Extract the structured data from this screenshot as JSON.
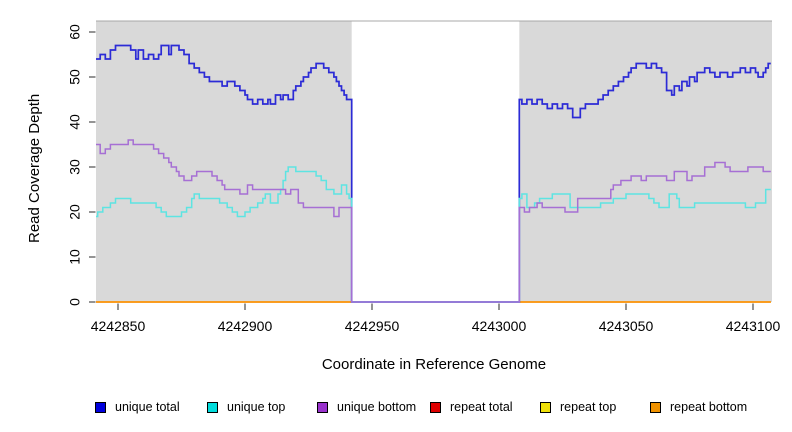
{
  "chart_data": {
    "type": "line",
    "subtype": "step-after",
    "title": "",
    "xlabel": "Coordinate in Reference Genome",
    "ylabel": "Read Coverage Depth",
    "xlim": [
      4242841,
      4243107
    ],
    "ylim": [
      0,
      62.4
    ],
    "x_ticks": [
      4242850,
      4242900,
      4242950,
      4243000,
      4243050,
      4243100
    ],
    "y_ticks": [
      0,
      10,
      20,
      30,
      40,
      50,
      60
    ],
    "grid": "off",
    "legend_position": "bottom",
    "panel_bg": "#d9d9d9",
    "gap_region": {
      "from": 4242942,
      "to": 4243008,
      "fill": "#ffffff"
    },
    "series": [
      {
        "name": "repeat total",
        "color": "#dd0000",
        "line_color": "#dd0000",
        "segments": [
          [
            [
              4242841,
              0
            ],
            [
              4242942,
              0
            ]
          ],
          [
            [
              4243008,
              0
            ],
            [
              4243107,
              0
            ]
          ]
        ]
      },
      {
        "name": "repeat top",
        "color": "#f0e10a",
        "line_color": "#f0e10a",
        "segments": [
          [
            [
              4242841,
              0
            ],
            [
              4242942,
              0
            ]
          ],
          [
            [
              4243008,
              0
            ],
            [
              4243107,
              0
            ]
          ]
        ]
      },
      {
        "name": "repeat bottom",
        "color": "#f09200",
        "line_color": "#ff9716",
        "segments": [
          [
            [
              4242841,
              0
            ],
            [
              4242942,
              0
            ]
          ],
          [
            [
              4243008,
              0
            ],
            [
              4243107,
              0
            ]
          ]
        ]
      },
      {
        "name": "unique total",
        "color": "#0000dd",
        "line_color": "#2c2bd6",
        "segments": [
          [
            [
              4242841,
              54
            ],
            [
              4242843,
              55
            ],
            [
              4242845,
              54
            ],
            [
              4242847,
              56
            ],
            [
              4242849,
              57
            ],
            [
              4242855,
              56
            ],
            [
              4242857,
              54
            ],
            [
              4242858,
              56
            ],
            [
              4242860,
              54
            ],
            [
              4242862,
              55
            ],
            [
              4242864,
              54
            ],
            [
              4242866,
              55
            ],
            [
              4242867,
              57
            ],
            [
              4242870,
              55
            ],
            [
              4242871,
              57
            ],
            [
              4242874,
              56
            ],
            [
              4242876,
              55
            ],
            [
              4242878,
              53
            ],
            [
              4242880,
              52
            ],
            [
              4242882,
              51
            ],
            [
              4242884,
              50
            ],
            [
              4242886,
              49
            ],
            [
              4242891,
              48
            ],
            [
              4242893,
              49
            ],
            [
              4242896,
              48
            ],
            [
              4242898,
              47
            ],
            [
              4242900,
              46
            ],
            [
              4242901,
              45
            ],
            [
              4242903,
              44
            ],
            [
              4242905,
              45
            ],
            [
              4242907,
              44
            ],
            [
              4242909,
              45
            ],
            [
              4242910,
              44
            ],
            [
              4242912,
              46
            ],
            [
              4242914,
              45
            ],
            [
              4242915,
              46
            ],
            [
              4242917,
              45
            ],
            [
              4242919,
              47
            ],
            [
              4242920,
              48
            ],
            [
              4242922,
              49
            ],
            [
              4242923,
              50
            ],
            [
              4242925,
              51
            ],
            [
              4242926,
              52
            ],
            [
              4242928,
              53
            ],
            [
              4242931,
              52
            ],
            [
              4242933,
              51
            ],
            [
              4242935,
              50
            ],
            [
              4242936,
              49
            ],
            [
              4242937,
              48
            ],
            [
              4242938,
              47
            ],
            [
              4242939,
              46
            ],
            [
              4242940,
              45
            ],
            [
              4242942,
              0
            ],
            [
              4243008,
              45
            ],
            [
              4243009,
              44
            ],
            [
              4243011,
              45
            ],
            [
              4243013,
              44
            ],
            [
              4243015,
              45
            ],
            [
              4243017,
              44
            ],
            [
              4243019,
              43
            ],
            [
              4243021,
              44
            ],
            [
              4243023,
              43
            ],
            [
              4243025,
              44
            ],
            [
              4243027,
              43
            ],
            [
              4243029,
              41
            ],
            [
              4243032,
              43
            ],
            [
              4243034,
              44
            ],
            [
              4243039,
              45
            ],
            [
              4243041,
              46
            ],
            [
              4243043,
              47
            ],
            [
              4243045,
              48
            ],
            [
              4243047,
              49
            ],
            [
              4243049,
              50
            ],
            [
              4243051,
              51
            ],
            [
              4243052,
              52
            ],
            [
              4243054,
              53
            ],
            [
              4243058,
              52
            ],
            [
              4243060,
              53
            ],
            [
              4243062,
              52
            ],
            [
              4243064,
              51
            ],
            [
              4243066,
              47
            ],
            [
              4243068,
              46
            ],
            [
              4243069,
              48
            ],
            [
              4243071,
              47
            ],
            [
              4243072,
              49
            ],
            [
              4243074,
              48
            ],
            [
              4243075,
              50
            ],
            [
              4243077,
              49
            ],
            [
              4243078,
              51
            ],
            [
              4243081,
              52
            ],
            [
              4243083,
              51
            ],
            [
              4243085,
              50
            ],
            [
              4243087,
              51
            ],
            [
              4243090,
              50
            ],
            [
              4243092,
              51
            ],
            [
              4243095,
              52
            ],
            [
              4243097,
              51
            ],
            [
              4243099,
              52
            ],
            [
              4243101,
              51
            ],
            [
              4243102,
              50
            ],
            [
              4243104,
              51
            ],
            [
              4243105,
              52
            ],
            [
              4243106,
              53
            ],
            [
              4243107,
              53
            ]
          ]
        ]
      },
      {
        "name": "unique top",
        "color": "#00dcdc",
        "line_color": "#5de4e2",
        "segments": [
          [
            [
              4242841,
              19
            ],
            [
              4242842,
              20
            ],
            [
              4242844,
              21
            ],
            [
              4242847,
              22
            ],
            [
              4242849,
              23
            ],
            [
              4242855,
              22
            ],
            [
              4242863,
              22
            ],
            [
              4242865,
              21
            ],
            [
              4242867,
              20
            ],
            [
              4242869,
              19
            ],
            [
              4242873,
              19
            ],
            [
              4242875,
              20
            ],
            [
              4242877,
              21
            ],
            [
              4242879,
              23
            ],
            [
              4242880,
              24
            ],
            [
              4242882,
              23
            ],
            [
              4242888,
              23
            ],
            [
              4242890,
              22
            ],
            [
              4242893,
              21
            ],
            [
              4242895,
              20
            ],
            [
              4242897,
              19
            ],
            [
              4242900,
              20
            ],
            [
              4242902,
              21
            ],
            [
              4242905,
              22
            ],
            [
              4242907,
              23
            ],
            [
              4242908,
              24
            ],
            [
              4242910,
              22
            ],
            [
              4242913,
              24
            ],
            [
              4242914,
              25
            ],
            [
              4242915,
              27
            ],
            [
              4242916,
              29
            ],
            [
              4242917,
              30
            ],
            [
              4242920,
              29
            ],
            [
              4242928,
              28
            ],
            [
              4242930,
              27
            ],
            [
              4242932,
              25
            ],
            [
              4242935,
              24
            ],
            [
              4242938,
              26
            ],
            [
              4242940,
              24
            ],
            [
              4242941,
              23
            ],
            [
              4242942,
              0
            ],
            [
              4243008,
              23
            ],
            [
              4243009,
              24
            ],
            [
              4243011,
              21
            ],
            [
              4243014,
              22
            ],
            [
              4243016,
              23
            ],
            [
              4243021,
              24
            ],
            [
              4243028,
              21
            ],
            [
              4243040,
              22
            ],
            [
              4243045,
              23
            ],
            [
              4243050,
              24
            ],
            [
              4243059,
              23
            ],
            [
              4243061,
              22
            ],
            [
              4243063,
              21
            ],
            [
              4243067,
              24
            ],
            [
              4243070,
              23
            ],
            [
              4243071,
              21
            ],
            [
              4243077,
              22
            ],
            [
              4243097,
              21
            ],
            [
              4243101,
              22
            ],
            [
              4243105,
              25
            ],
            [
              4243107,
              25
            ]
          ]
        ]
      },
      {
        "name": "unique bottom",
        "color": "#9932cc",
        "line_color": "#a66fd4",
        "segments": [
          [
            [
              4242841,
              35
            ],
            [
              4242843,
              33
            ],
            [
              4242845,
              34
            ],
            [
              4242847,
              35
            ],
            [
              4242852,
              35
            ],
            [
              4242854,
              36
            ],
            [
              4242856,
              35
            ],
            [
              4242862,
              35
            ],
            [
              4242864,
              34
            ],
            [
              4242866,
              33
            ],
            [
              4242868,
              32
            ],
            [
              4242870,
              31
            ],
            [
              4242871,
              30
            ],
            [
              4242873,
              29
            ],
            [
              4242874,
              28
            ],
            [
              4242876,
              27
            ],
            [
              4242879,
              28
            ],
            [
              4242881,
              29
            ],
            [
              4242885,
              29
            ],
            [
              4242887,
              28
            ],
            [
              4242889,
              27
            ],
            [
              4242891,
              26
            ],
            [
              4242892,
              25
            ],
            [
              4242898,
              24
            ],
            [
              4242901,
              26
            ],
            [
              4242903,
              25
            ],
            [
              4242914,
              25
            ],
            [
              4242916,
              24
            ],
            [
              4242918,
              25
            ],
            [
              4242921,
              22
            ],
            [
              4242923,
              21
            ],
            [
              4242933,
              21
            ],
            [
              4242935,
              19
            ],
            [
              4242937,
              21
            ],
            [
              4242942,
              0
            ],
            [
              4243008,
              21
            ],
            [
              4243010,
              20
            ],
            [
              4243012,
              21
            ],
            [
              4243015,
              22
            ],
            [
              4243017,
              21
            ],
            [
              4243026,
              20
            ],
            [
              4243031,
              23
            ],
            [
              4243042,
              23
            ],
            [
              4243044,
              25
            ],
            [
              4243045,
              26
            ],
            [
              4243048,
              27
            ],
            [
              4243052,
              28
            ],
            [
              4243056,
              27
            ],
            [
              4243058,
              28
            ],
            [
              4243066,
              27
            ],
            [
              4243069,
              29
            ],
            [
              4243074,
              27
            ],
            [
              4243076,
              28
            ],
            [
              4243081,
              30
            ],
            [
              4243085,
              31
            ],
            [
              4243089,
              30
            ],
            [
              4243091,
              29
            ],
            [
              4243098,
              30
            ],
            [
              4243104,
              29
            ],
            [
              4243107,
              29
            ]
          ]
        ]
      }
    ],
    "legend_order": [
      "unique total",
      "unique top",
      "unique bottom",
      "repeat total",
      "repeat top",
      "repeat bottom"
    ]
  }
}
